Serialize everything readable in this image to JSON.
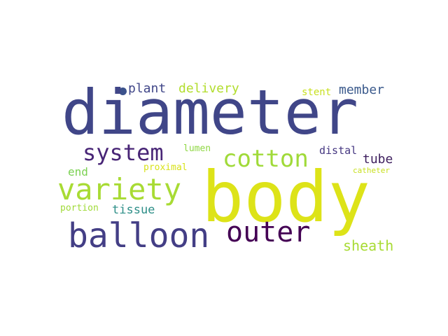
{
  "words": [
    {
      "text": "body",
      "color": "#dde318"
    },
    {
      "text": "diameter",
      "color": "#404688"
    },
    {
      "text": "variety",
      "color": "#a8db34"
    },
    {
      "text": "balloon",
      "color": "#433e85"
    },
    {
      "text": "outer",
      "color": "#440154"
    },
    {
      "text": "system",
      "color": "#482576"
    },
    {
      "text": "cotton",
      "color": "#a0da39"
    },
    {
      "text": "sheath",
      "color": "#a8db34"
    },
    {
      "text": "tube",
      "color": "#3e1f5e"
    },
    {
      "text": "member",
      "color": "#3b5a8c"
    },
    {
      "text": "delivery",
      "color": "#b2dd2d"
    },
    {
      "text": "plant",
      "color": "#404688"
    },
    {
      "text": "tissue",
      "color": "#2e8f88"
    },
    {
      "text": "end",
      "color": "#7ad151"
    },
    {
      "text": "stent",
      "color": "#c8e020"
    },
    {
      "text": "lumen",
      "color": "#8fd744"
    },
    {
      "text": "proximal",
      "color": "#d8e219"
    },
    {
      "text": "distal",
      "color": "#453781"
    },
    {
      "text": "portion",
      "color": "#a0da39"
    },
    {
      "text": "catheter",
      "color": "#c8e020"
    }
  ],
  "dot_color": "#3b528b"
}
